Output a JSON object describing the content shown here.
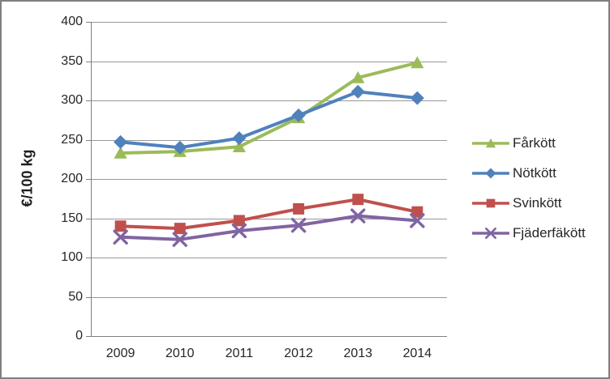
{
  "chart_data": {
    "type": "line",
    "title": "",
    "xlabel": "",
    "ylabel": "€/100 kg",
    "categories": [
      "2009",
      "2010",
      "2011",
      "2012",
      "2013",
      "2014"
    ],
    "series": [
      {
        "name": "Fårkött",
        "marker": "triangle",
        "color": "#9BBB59",
        "values": [
          233,
          235,
          241,
          278,
          329,
          348
        ]
      },
      {
        "name": "Nötkött",
        "marker": "diamond",
        "color": "#4F81BD",
        "values": [
          247,
          240,
          252,
          281,
          311,
          303
        ]
      },
      {
        "name": "Svinkött",
        "marker": "square",
        "color": "#C0504D",
        "values": [
          140,
          137,
          147,
          162,
          174,
          158
        ]
      },
      {
        "name": "Fjäderfäkött",
        "marker": "x",
        "color": "#8064A2",
        "values": [
          126,
          123,
          134,
          141,
          153,
          147
        ]
      }
    ],
    "ylim": [
      0,
      400
    ],
    "yticks": [
      0,
      50,
      100,
      150,
      200,
      250,
      300,
      350,
      400
    ],
    "grid": true,
    "legend_position": "right"
  },
  "style": {
    "grid_color": "#999999",
    "axis_color": "#808080",
    "text_color": "#262626",
    "frame_border_color": "#7F7F7F",
    "background": "#FFFFFF"
  }
}
